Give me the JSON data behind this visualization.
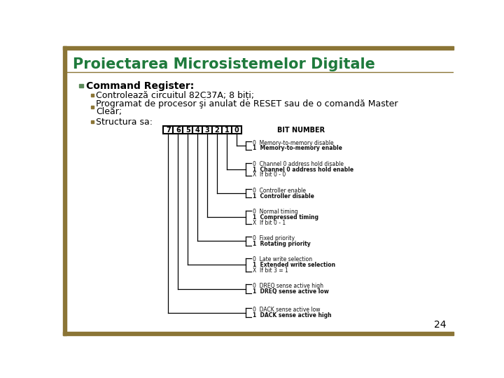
{
  "title": "Proiectarea Microsistemelor Digitale",
  "title_color": "#1F7A3C",
  "title_fontsize": 15,
  "bg_color": "#FFFFFF",
  "bar_color": "#8B7536",
  "bullet_main": "Command Register:",
  "bullet_main_fontsize": 10,
  "sub_fontsize": 9,
  "bullets": [
    "Controlează circuitul 82C37A; 8 biți;",
    "Programat de procesor şi anulat de RESET sau de o comandă Master Clear;",
    "Structura sa:"
  ],
  "diagram_bits": [
    "7",
    "6",
    "5",
    "4",
    "3",
    "2",
    "1",
    "0"
  ],
  "bit_number_label": "BIT NUMBER",
  "diagram_entries": [
    {
      "lines": [
        "0  Memory-to-memory disable",
        "1  Memory-to-memory enable"
      ],
      "bold": [
        false,
        true
      ]
    },
    {
      "lines": [
        "0  Channel 0 address hold disable",
        "1  Channel 0 address hold enable",
        "X  If bit 0 - 0"
      ],
      "bold": [
        false,
        true,
        false
      ]
    },
    {
      "lines": [
        "0  Controller enable",
        "1  Controller disable"
      ],
      "bold": [
        false,
        true
      ]
    },
    {
      "lines": [
        "0  Normal timing",
        "1  Compressed timing",
        "X  If bit 0 - 1"
      ],
      "bold": [
        false,
        true,
        false
      ]
    },
    {
      "lines": [
        "0  Fixed priority",
        "1  Rotating priority"
      ],
      "bold": [
        false,
        true
      ]
    },
    {
      "lines": [
        "0  Late write selection",
        "1  Extended write selection",
        "X  If bit 3 = 1"
      ],
      "bold": [
        false,
        true,
        false
      ]
    },
    {
      "lines": [
        "0  DREQ sense active high",
        "1  DREQ sense active low"
      ],
      "bold": [
        false,
        true
      ]
    },
    {
      "lines": [
        "0  DACK sense active low",
        "1  DACK sense active high"
      ],
      "bold": [
        false,
        true
      ]
    }
  ],
  "page_number": "24",
  "bullet_color": "#8B7536",
  "main_bullet_color": "#5B8A5A"
}
